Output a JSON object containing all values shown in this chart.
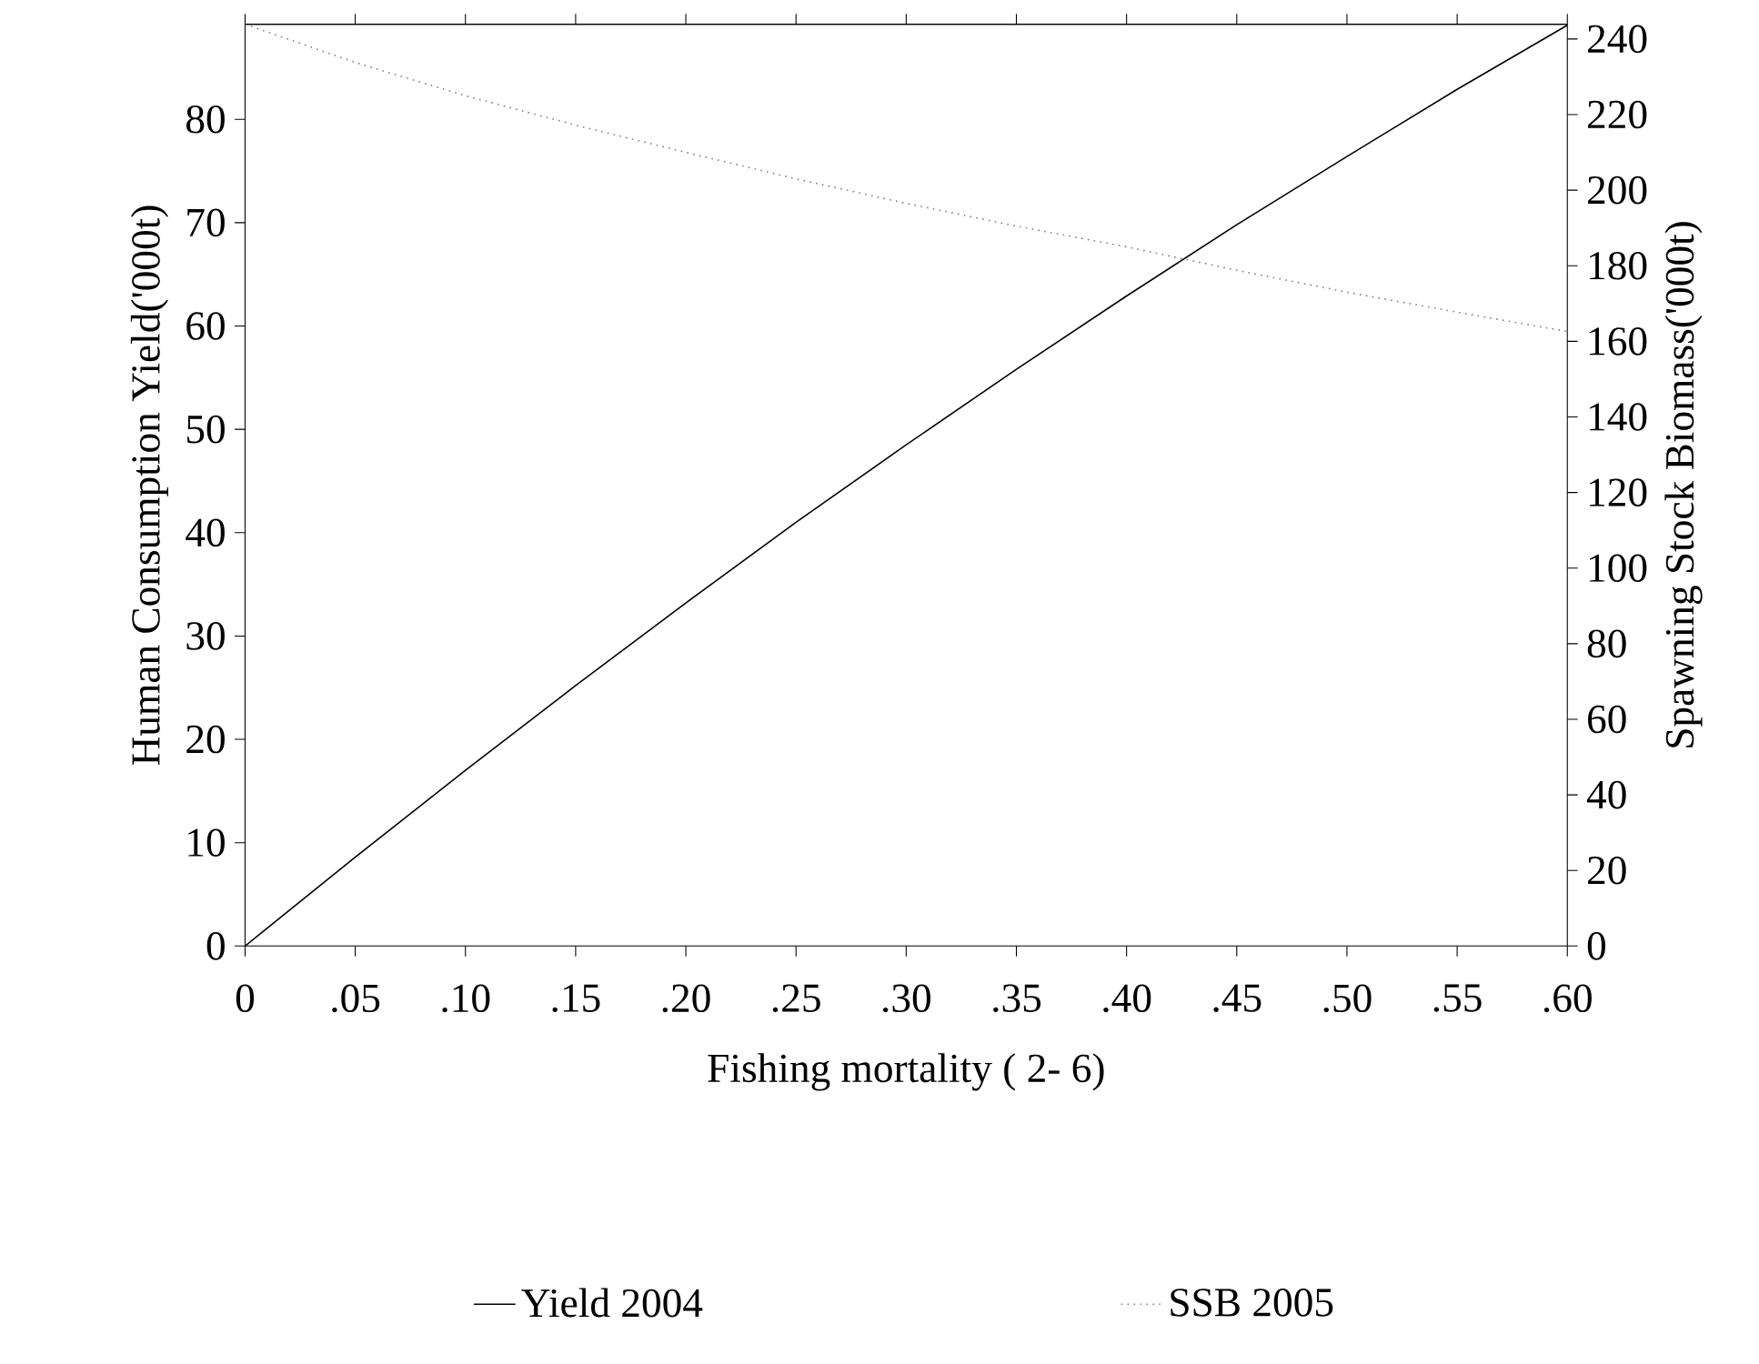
{
  "chart_data": {
    "type": "line",
    "xlabel": "Fishing mortality ( 2- 6)",
    "ylabel": "Human Consumption Yield('000t)",
    "y2label": "Spawning Stock Biomass('000t)",
    "x": [
      0,
      0.05,
      0.1,
      0.15,
      0.2,
      0.25,
      0.3,
      0.35,
      0.4,
      0.45,
      0.5,
      0.55,
      0.6
    ],
    "series": [
      {
        "name": "Yield 2004",
        "color": "#000000",
        "line_style": "solid",
        "values": [
          0,
          8.6,
          17,
          25.2,
          33.2,
          41,
          48.5,
          55.8,
          62.9,
          69.8,
          76.4,
          82.9,
          89.1
        ]
      },
      {
        "name": "SSB 2005",
        "color": "#808080",
        "line_style": "dotted",
        "axis": "y2",
        "values": [
          243.9,
          233.8,
          225,
          217.2,
          210,
          203,
          196.5,
          190.5,
          185,
          178.8,
          173,
          167.7,
          162.6
        ]
      }
    ],
    "xlim": [
      0,
      0.6
    ],
    "xticks": [
      0,
      {
        "value": 0.05,
        "label": ".05"
      },
      {
        "value": 0.1,
        "label": ".10"
      },
      {
        "value": 0.15,
        "label": ".15"
      },
      {
        "value": 0.2,
        "label": ".20"
      },
      {
        "value": 0.25,
        "label": ".25"
      },
      {
        "value": 0.3,
        "label": ".30"
      },
      {
        "value": 0.35,
        "label": ".35"
      },
      {
        "value": 0.4,
        "label": ".40"
      },
      {
        "value": 0.45,
        "label": ".45"
      },
      {
        "value": 0.5,
        "label": ".50"
      },
      {
        "value": 0.55,
        "label": ".55"
      },
      {
        "value": 0.6,
        "label": ".60"
      }
    ],
    "ylim": [
      0,
      89.2
    ],
    "yticks": [
      0,
      10,
      20,
      30,
      40,
      50,
      60,
      70,
      80
    ],
    "y2lim": [
      0,
      243.9
    ],
    "y2ticks": [
      0,
      20,
      40,
      60,
      80,
      100,
      120,
      140,
      160,
      180,
      200,
      220,
      240
    ],
    "legend": "bottom"
  }
}
